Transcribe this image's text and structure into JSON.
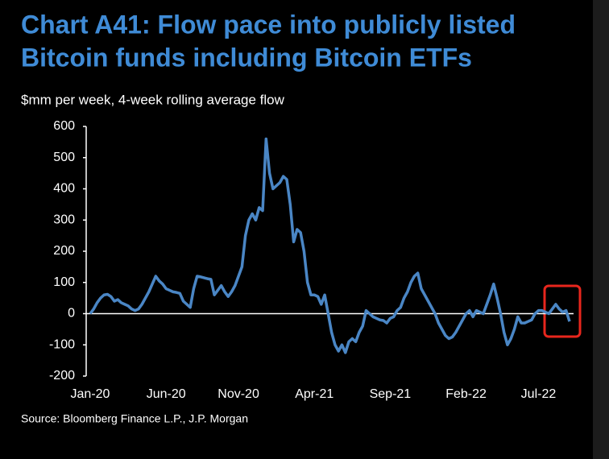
{
  "chart_data": {
    "type": "line",
    "title": [
      "Chart A41: Flow pace into publicly listed",
      "Bitcoin funds including Bitcoin ETFs"
    ],
    "subtitle": "$mm per week, 4-week rolling average flow",
    "source": "Source: Bloomberg Finance L.P., J.P. Morgan",
    "color": "#4a86c5",
    "categories": [
      "Jan-20",
      null,
      null,
      null,
      null,
      null,
      null,
      null,
      null,
      null,
      null,
      null,
      null,
      null,
      null,
      null,
      null,
      null,
      null,
      null,
      null,
      null,
      "Jun-20",
      null,
      null,
      null,
      null,
      null,
      null,
      null,
      null,
      null,
      null,
      null,
      null,
      null,
      null,
      null,
      null,
      null,
      null,
      null,
      null,
      "Nov-20",
      null,
      null,
      null,
      null,
      null,
      null,
      null,
      null,
      null,
      null,
      null,
      null,
      null,
      null,
      null,
      null,
      null,
      null,
      null,
      null,
      null,
      "Apr-21",
      null,
      null,
      null,
      null,
      null,
      null,
      null,
      null,
      null,
      null,
      null,
      null,
      null,
      null,
      null,
      null,
      null,
      null,
      null,
      null,
      null,
      "Sep-21",
      null,
      null,
      null,
      null,
      null,
      null,
      null,
      null,
      null,
      null,
      null,
      null,
      null,
      null,
      null,
      null,
      null,
      null,
      null,
      null,
      null,
      "Feb-22",
      null,
      null,
      null,
      null,
      null,
      null,
      null,
      null,
      null,
      null,
      null,
      null,
      null,
      null,
      null,
      null,
      null,
      null,
      null,
      null,
      "Jul-22",
      null,
      null,
      null,
      null,
      null,
      null,
      null,
      null,
      null
    ],
    "values": [
      0,
      15,
      35,
      50,
      60,
      62,
      55,
      40,
      45,
      35,
      30,
      25,
      15,
      10,
      15,
      30,
      50,
      70,
      95,
      120,
      105,
      95,
      80,
      75,
      70,
      68,
      65,
      40,
      30,
      20,
      80,
      120,
      118,
      115,
      112,
      110,
      60,
      75,
      90,
      70,
      55,
      70,
      90,
      120,
      150,
      250,
      300,
      320,
      300,
      340,
      330,
      560,
      450,
      400,
      410,
      420,
      440,
      430,
      350,
      230,
      270,
      260,
      200,
      100,
      60,
      60,
      55,
      30,
      60,
      0,
      -60,
      -100,
      -120,
      -100,
      -125,
      -90,
      -80,
      -90,
      -60,
      -40,
      10,
      0,
      -10,
      -15,
      -20,
      -22,
      -30,
      -15,
      -10,
      10,
      20,
      50,
      70,
      100,
      120,
      130,
      80,
      60,
      40,
      20,
      0,
      -30,
      -50,
      -70,
      -80,
      -75,
      -60,
      -40,
      -20,
      0,
      10,
      -10,
      10,
      5,
      0,
      30,
      60,
      95,
      50,
      0,
      -60,
      -100,
      -80,
      -50,
      -10,
      -30,
      -30,
      -25,
      -20,
      0,
      10,
      10,
      5,
      0,
      15,
      30,
      15,
      5,
      10,
      -25
    ],
    "ylim": [
      -200,
      600
    ],
    "yticks": [
      -200,
      -100,
      0,
      100,
      200,
      300,
      400,
      500,
      600
    ]
  }
}
